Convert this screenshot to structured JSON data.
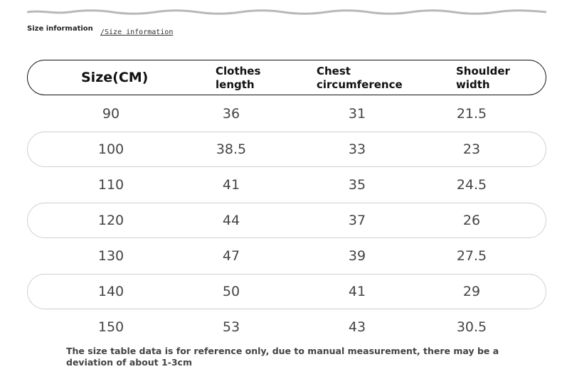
{
  "title": "Size information",
  "subtitle": "/Size information",
  "table": {
    "headers": {
      "size": "Size(CM)",
      "clothes_length": [
        "Clothes",
        "length"
      ],
      "chest": [
        "Chest",
        "circumference"
      ],
      "shoulder": [
        "Shoulder",
        "width"
      ]
    },
    "rows": [
      {
        "size": "90",
        "clothes_length": "36",
        "chest": "31",
        "shoulder": "21.5"
      },
      {
        "size": "100",
        "clothes_length": "38.5",
        "chest": "33",
        "shoulder": "23"
      },
      {
        "size": "110",
        "clothes_length": "41",
        "chest": "35",
        "shoulder": "24.5"
      },
      {
        "size": "120",
        "clothes_length": "44",
        "chest": "37",
        "shoulder": "26"
      },
      {
        "size": "130",
        "clothes_length": "47",
        "chest": "39",
        "shoulder": "27.5"
      },
      {
        "size": "140",
        "clothes_length": "50",
        "chest": "41",
        "shoulder": "29"
      },
      {
        "size": "150",
        "clothes_length": "53",
        "chest": "43",
        "shoulder": "30.5"
      }
    ]
  },
  "note": "The size table data is for reference only, due to manual measurement, there may be a deviation of about 1-3cm"
}
